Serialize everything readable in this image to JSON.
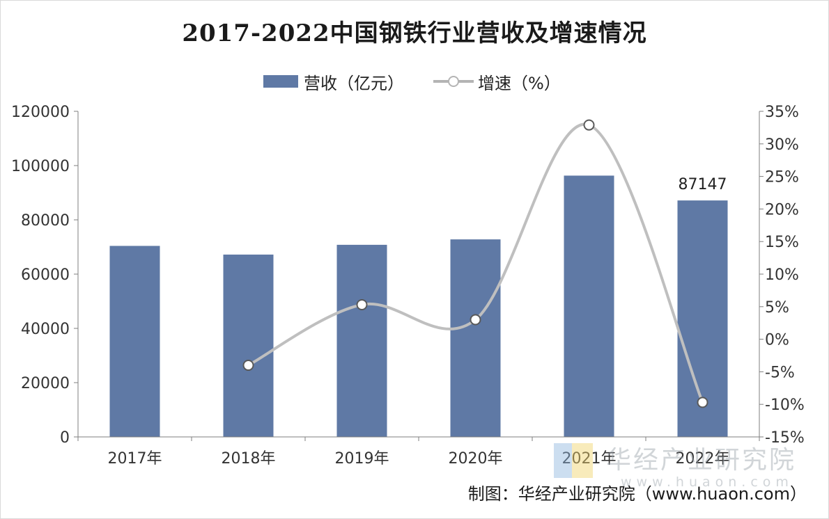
{
  "title": "2017-2022中国钢铁行业营收及增速情况",
  "legend": {
    "revenue": "营收（亿元）",
    "growth": "增速（%）"
  },
  "footer": "制图：华经产业研究院（www.huaon.com）",
  "watermark": {
    "name": "华经产业研究院",
    "url": "www.huaon.com"
  },
  "colors": {
    "bar": "#5f79a5",
    "line": "#bfbfbf",
    "axis": "#7f7f7f"
  },
  "chart_data": {
    "type": "bar",
    "categories": [
      "2017年",
      "2018年",
      "2019年",
      "2020年",
      "2021年",
      "2022年"
    ],
    "series": [
      {
        "name": "营收（亿元）",
        "type": "bar",
        "axis": "left",
        "values": [
          70400,
          67200,
          70800,
          72800,
          96300,
          87147
        ],
        "data_labels": [
          null,
          null,
          null,
          null,
          null,
          "87147"
        ]
      },
      {
        "name": "增速（%）",
        "type": "line",
        "axis": "right",
        "smooth": true,
        "values": [
          null,
          -4.0,
          5.3,
          3.0,
          32.9,
          -9.7
        ]
      }
    ],
    "y_left": {
      "lim": [
        0,
        120000
      ],
      "ticks": [
        "0",
        "20000",
        "40000",
        "60000",
        "80000",
        "100000",
        "120000"
      ]
    },
    "y_right": {
      "lim": [
        -15,
        35
      ],
      "ticks": [
        "-15%",
        "-10%",
        "-5%",
        "0%",
        "5%",
        "10%",
        "15%",
        "20%",
        "25%",
        "30%",
        "35%"
      ]
    },
    "grid": false,
    "legend_position": "top"
  }
}
